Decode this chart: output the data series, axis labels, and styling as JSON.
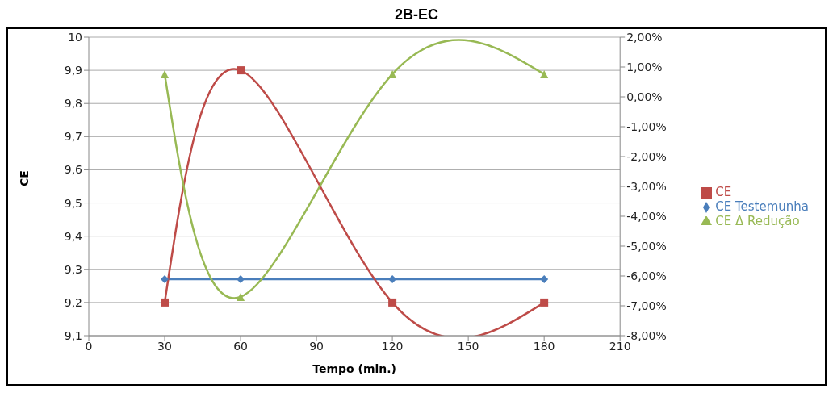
{
  "chart_data": {
    "type": "line",
    "title": "2B-EC",
    "xlabel": "Tempo (min.)",
    "ylabel": "CE",
    "x": [
      30,
      60,
      120,
      180
    ],
    "series": [
      {
        "name": "CE Testemunha",
        "color": "#4a7ebb",
        "values": [
          9.27,
          9.27,
          9.27,
          9.27
        ],
        "marker": "diamond"
      },
      {
        "name": "CE",
        "color": "#be4b48",
        "values": [
          9.2,
          9.9,
          9.2,
          9.2
        ],
        "marker": "square"
      },
      {
        "name": "CE Δ Redução",
        "color": "#98b954",
        "values": [
          0.76,
          -6.7,
          0.76,
          0.76
        ],
        "marker": "triangle",
        "axis": "y2"
      }
    ],
    "xlim": [
      0,
      210
    ],
    "xticks": [
      0,
      30,
      60,
      90,
      120,
      150,
      180,
      210
    ],
    "ylim": [
      9.1,
      10
    ],
    "yticks": [
      {
        "value": 9.1,
        "label": "9,1"
      },
      {
        "value": 9.2,
        "label": "9,2"
      },
      {
        "value": 9.3,
        "label": "9,3"
      },
      {
        "value": 9.4,
        "label": "9,4"
      },
      {
        "value": 9.5,
        "label": "9,5"
      },
      {
        "value": 9.6,
        "label": "9,6"
      },
      {
        "value": 9.7,
        "label": "9,7"
      },
      {
        "value": 9.8,
        "label": "9,8"
      },
      {
        "value": 9.9,
        "label": "9,9"
      },
      10
    ],
    "y2lim": [
      -8,
      2
    ],
    "y2ticks": [
      {
        "value": -8,
        "label": "-8,00%"
      },
      {
        "value": -7,
        "label": "-7,00%"
      },
      {
        "value": -6,
        "label": "-6,00%"
      },
      {
        "value": -5,
        "label": "-5,00%"
      },
      {
        "value": -4,
        "label": "-4,00%"
      },
      {
        "value": -3,
        "label": "-3,00%"
      },
      {
        "value": -2,
        "label": "-2,00%"
      },
      {
        "value": -1,
        "label": "-1,00%"
      },
      {
        "value": 0,
        "label": "0,00%"
      },
      {
        "value": 1,
        "label": "1,00%"
      },
      {
        "value": 2,
        "label": "2,00%"
      }
    ],
    "grid": "y",
    "legend": "right"
  }
}
